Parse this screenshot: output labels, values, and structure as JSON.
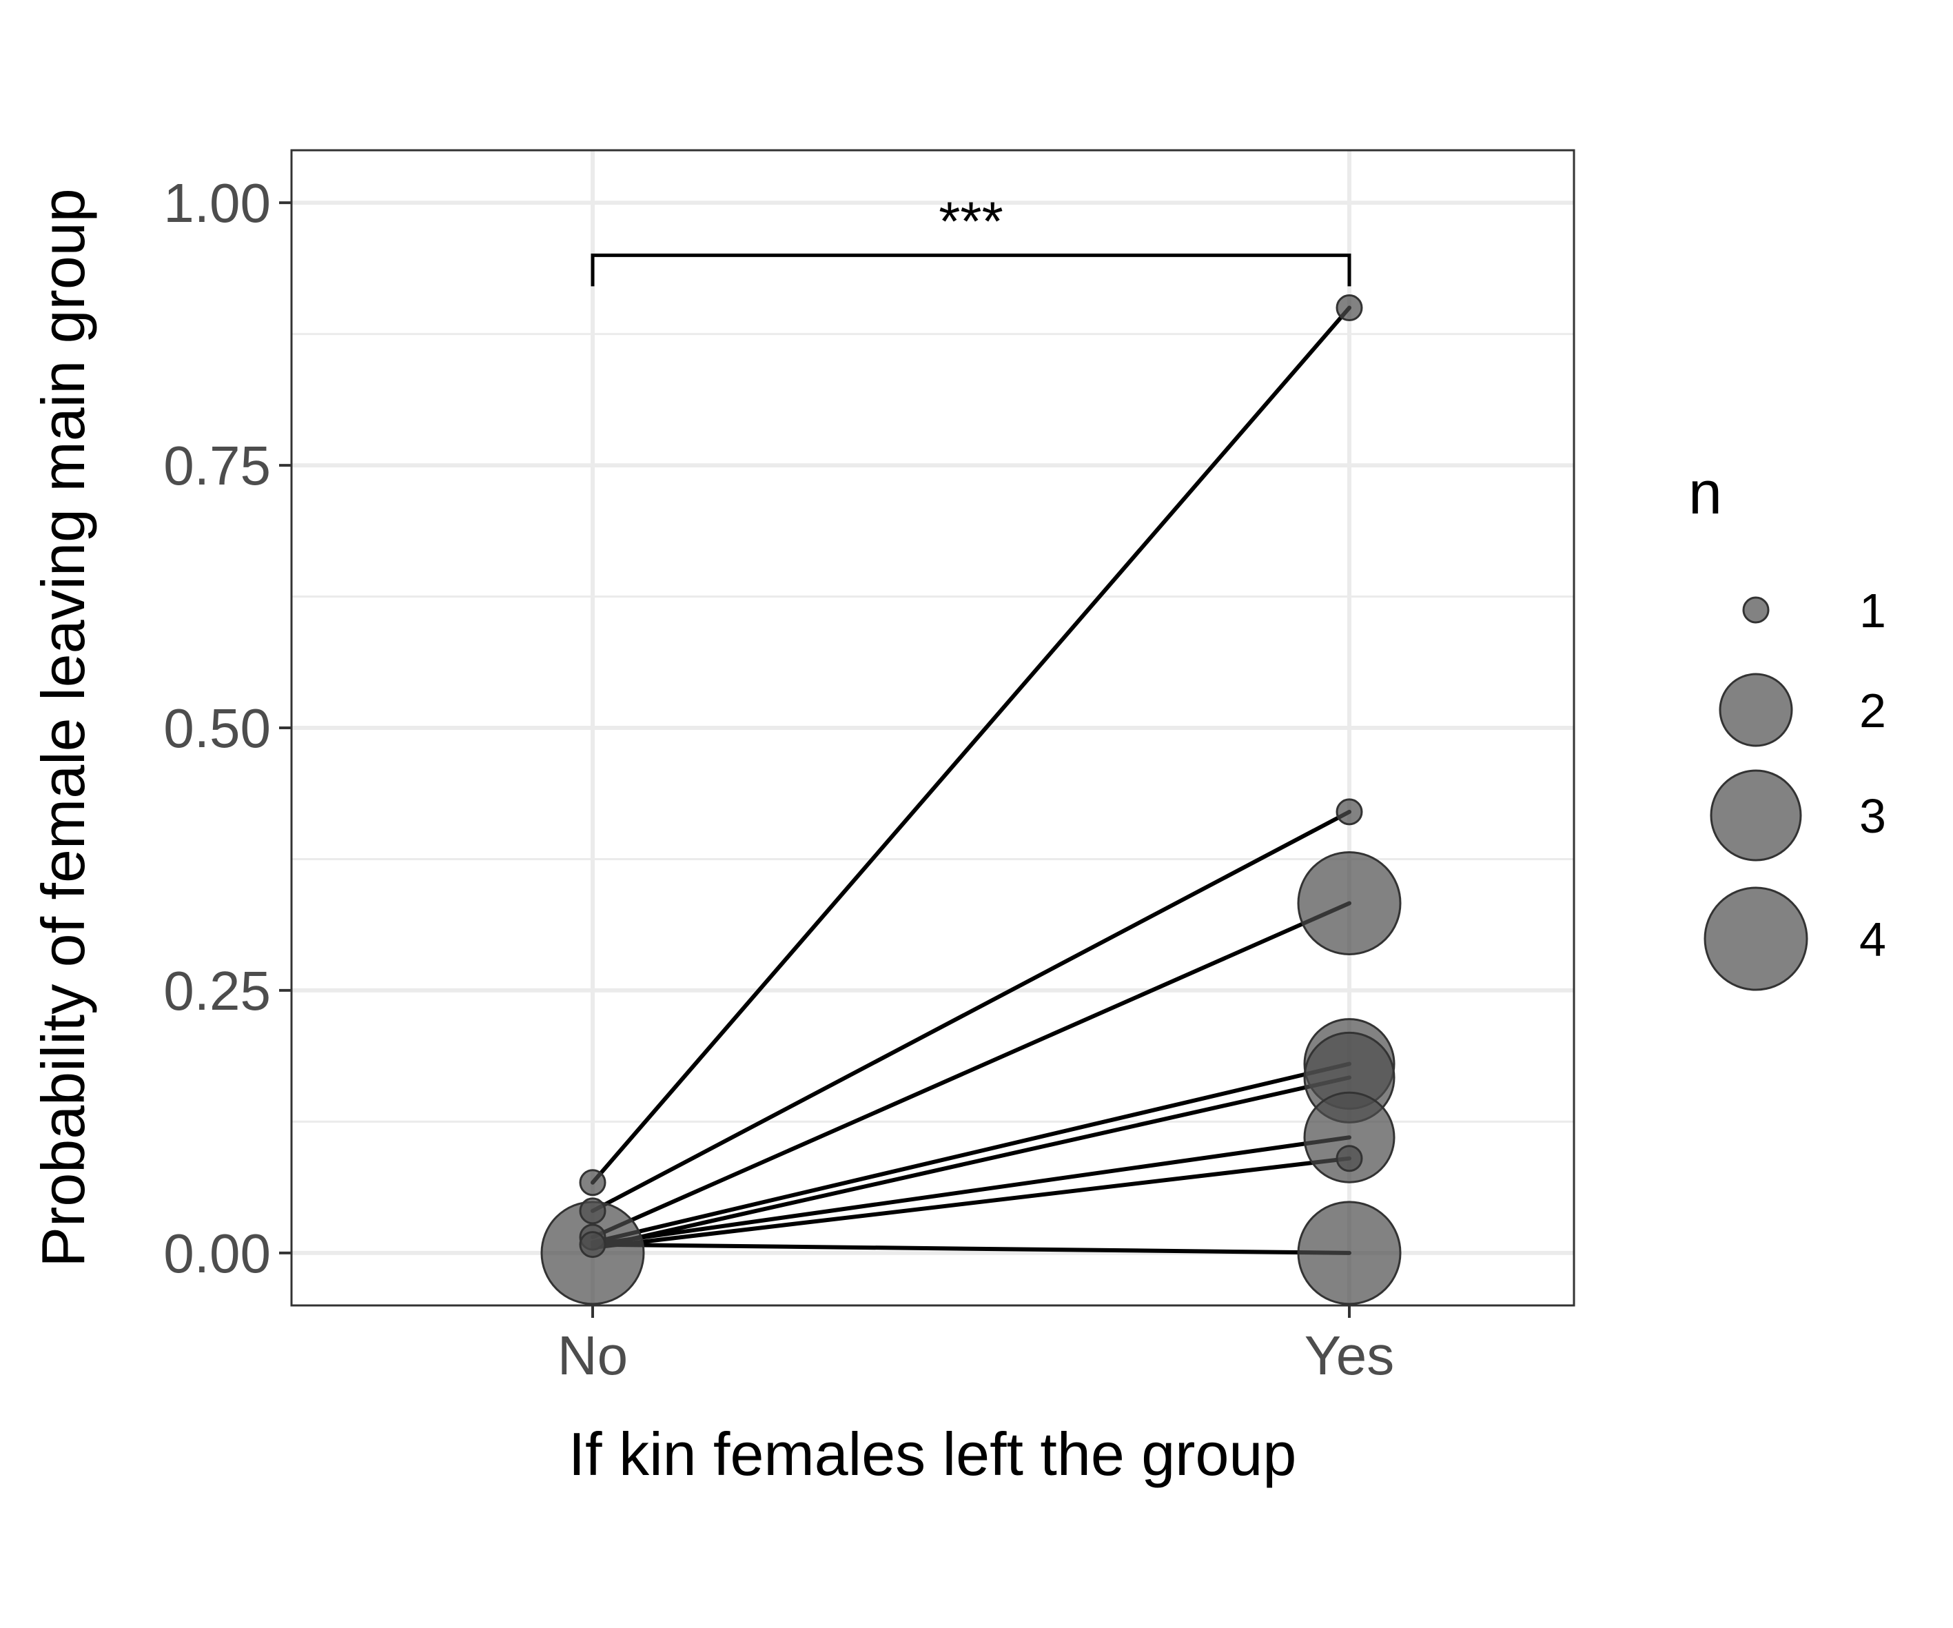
{
  "chart_data": {
    "type": "scatter",
    "xlabel": "If kin females left the group",
    "ylabel": "Probability of female leaving main group",
    "categories": [
      "No",
      "Yes"
    ],
    "ylim": [
      -0.05,
      1.05
    ],
    "y_ticks": [
      0.0,
      0.25,
      0.5,
      0.75,
      1.0
    ],
    "y_tick_labels": [
      "0.00",
      "0.25",
      "0.50",
      "0.75",
      "1.00"
    ],
    "grid": true,
    "legend": {
      "title": "n",
      "position": "right",
      "entries": [
        {
          "label": "1",
          "n": 1
        },
        {
          "label": "2",
          "n": 2
        },
        {
          "label": "3",
          "n": 3
        },
        {
          "label": "4",
          "n": 4
        }
      ]
    },
    "significance": {
      "label": "***",
      "from": "No",
      "to": "Yes",
      "y": 0.95
    },
    "paired_lines": [
      {
        "no": 0.067,
        "yes": 0.9
      },
      {
        "no": 0.04,
        "yes": 0.42
      },
      {
        "no": 0.015,
        "yes": 0.333
      },
      {
        "no": 0.01,
        "yes": 0.18
      },
      {
        "no": 0.005,
        "yes": 0.167
      },
      {
        "no": 0.008,
        "yes": 0.11
      },
      {
        "no": 0.005,
        "yes": 0.09
      },
      {
        "no": 0.008,
        "yes": 0.0
      }
    ],
    "points": [
      {
        "x": "No",
        "y": 0.0,
        "n": 4
      },
      {
        "x": "No",
        "y": 0.067,
        "n": 1
      },
      {
        "x": "No",
        "y": 0.04,
        "n": 1
      },
      {
        "x": "No",
        "y": 0.015,
        "n": 1
      },
      {
        "x": "No",
        "y": 0.008,
        "n": 1
      },
      {
        "x": "Yes",
        "y": 0.9,
        "n": 1
      },
      {
        "x": "Yes",
        "y": 0.42,
        "n": 1
      },
      {
        "x": "Yes",
        "y": 0.333,
        "n": 4
      },
      {
        "x": "Yes",
        "y": 0.18,
        "n": 3
      },
      {
        "x": "Yes",
        "y": 0.167,
        "n": 3
      },
      {
        "x": "Yes",
        "y": 0.11,
        "n": 3
      },
      {
        "x": "Yes",
        "y": 0.09,
        "n": 1
      },
      {
        "x": "Yes",
        "y": 0.0,
        "n": 4
      }
    ],
    "colors": {
      "point_fill": "#4d4d4d",
      "point_stroke": "#333333",
      "line": "#000000",
      "grid": "#ebebeb",
      "panel_border": "#333333"
    }
  }
}
